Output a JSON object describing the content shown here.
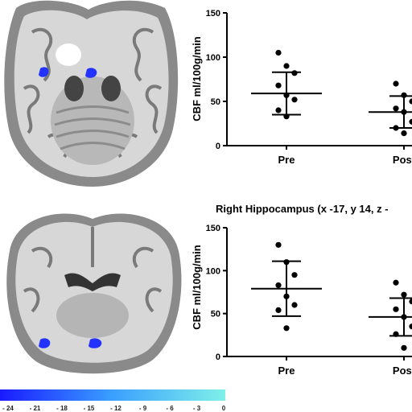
{
  "chart_data": [
    {
      "type": "scatter",
      "title": "",
      "xlabel": "",
      "ylabel": "CBF ml/100g/min",
      "ylim": [
        0,
        150
      ],
      "yticks": [
        "0",
        "50",
        "100",
        "150"
      ],
      "categories": [
        "Pre",
        "Post"
      ],
      "series": [
        {
          "category": "Pre",
          "values": [
            105,
            90,
            82,
            68,
            57,
            52,
            40,
            33
          ],
          "mean": 59,
          "sd_upper": 83,
          "sd_lower": 35
        },
        {
          "category": "Post",
          "values": [
            70,
            57,
            50,
            42,
            38,
            27,
            20,
            14
          ],
          "mean": 38,
          "sd_upper": 56,
          "sd_lower": 20
        }
      ]
    },
    {
      "type": "scatter",
      "title": "Right Hippocampus (x -17, y 14, z -",
      "xlabel": "",
      "ylabel": "CBF ml/100g/min",
      "ylim": [
        0,
        150
      ],
      "yticks": [
        "0",
        "50",
        "100",
        "150"
      ],
      "categories": [
        "Pre",
        "Post"
      ],
      "series": [
        {
          "category": "Pre",
          "values": [
            130,
            110,
            95,
            83,
            70,
            60,
            54,
            33
          ],
          "mean": 79,
          "sd_upper": 111,
          "sd_lower": 47
        },
        {
          "category": "Post",
          "values": [
            86,
            72,
            64,
            55,
            46,
            35,
            26,
            10
          ],
          "mean": 46,
          "sd_upper": 68,
          "sd_lower": 24
        }
      ]
    }
  ],
  "colorbar": {
    "ticks": [
      "- 24",
      "- 21",
      "- 18",
      "- 15",
      "- 12",
      "- 9",
      "- 6",
      "- 3",
      "0"
    ],
    "color_start": "#1a1aff",
    "color_end": "#7ff0e8"
  },
  "colors": {
    "marker": "#000000",
    "blob": "#2233ff",
    "axis": "#000000"
  }
}
